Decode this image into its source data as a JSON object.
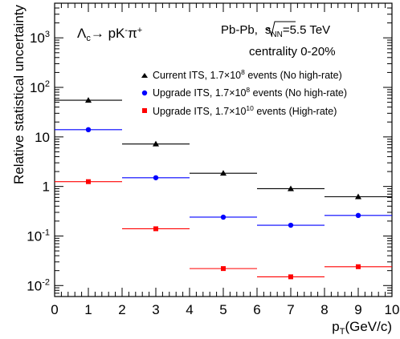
{
  "chart_data": {
    "type": "scatter",
    "title": "",
    "xlabel": "p_T (GeV/c)",
    "ylabel": "Relative statistical uncertainty",
    "xlim": [
      0,
      10
    ],
    "ylim": [
      0.006,
      5000
    ],
    "yscale": "log",
    "x_ticks": [
      "0",
      "1",
      "2",
      "3",
      "4",
      "5",
      "6",
      "7",
      "8",
      "9",
      "10"
    ],
    "y_ticks": [
      {
        "value": 0.01,
        "base": "10",
        "exp": "-2"
      },
      {
        "value": 0.1,
        "base": "10",
        "exp": "-1"
      },
      {
        "value": 1,
        "base": "1",
        "exp": ""
      },
      {
        "value": 10,
        "base": "10",
        "exp": ""
      },
      {
        "value": 100,
        "base": "10",
        "exp": "2"
      },
      {
        "value": 1000,
        "base": "10",
        "exp": "3"
      }
    ],
    "bin_edges": [
      0.0,
      2.0,
      4.0,
      6.0,
      8.0,
      10.0
    ],
    "series": [
      {
        "name": "Current ITS, 1.7×10^8 events (No high-rate)",
        "legend": {
          "pre": "Current ITS, 1.7×10",
          "sup": "8",
          "post": " events (No high-rate)"
        },
        "marker": "triangle",
        "color": "#000000",
        "x": [
          1,
          3,
          5,
          7,
          9
        ],
        "xerr_low": [
          0.0,
          2.0,
          4.0,
          6.0,
          8.0
        ],
        "xerr_high": [
          2.0,
          4.0,
          6.0,
          8.0,
          10.0
        ],
        "values": [
          55,
          7.2,
          1.85,
          0.9,
          0.62
        ]
      },
      {
        "name": "Upgrade ITS, 1.7×10^8 events (No high-rate)",
        "legend": {
          "pre": "Upgrade ITS, 1.7×10",
          "sup": "8",
          "post": " events (No high-rate)"
        },
        "marker": "circle",
        "color": "#0000ff",
        "x": [
          1,
          3,
          5,
          7,
          9
        ],
        "xerr_low": [
          0.0,
          2.0,
          4.0,
          6.0,
          8.0
        ],
        "xerr_high": [
          2.0,
          4.0,
          6.0,
          8.0,
          10.0
        ],
        "values": [
          14,
          1.5,
          0.24,
          0.165,
          0.26
        ]
      },
      {
        "name": "Upgrade ITS, 1.7×10^10 events (High-rate)",
        "legend": {
          "pre": "Upgrade ITS, 1.7×10",
          "sup": "10",
          "post": " events (High-rate)"
        },
        "marker": "square",
        "color": "#ff0000",
        "x": [
          1,
          3,
          5,
          7,
          9
        ],
        "xerr_low": [
          0.0,
          2.0,
          4.0,
          6.0,
          8.0
        ],
        "xerr_high": [
          2.0,
          4.0,
          6.0,
          8.0,
          10.0
        ],
        "values": [
          1.25,
          0.14,
          0.022,
          0.015,
          0.024
        ]
      }
    ],
    "annotations": {
      "decay": {
        "lambda": "Λ",
        "lambda_sub": "c",
        "arrow": "→ pK",
        "k_sup": "-",
        "pi": "π",
        "pi_sup": "+"
      },
      "system": {
        "pre": "Pb-Pb,",
        "s": "s",
        "s_sub": "NN",
        "post": "=5.5 TeV"
      },
      "centrality": "centrality 0-20%"
    }
  }
}
